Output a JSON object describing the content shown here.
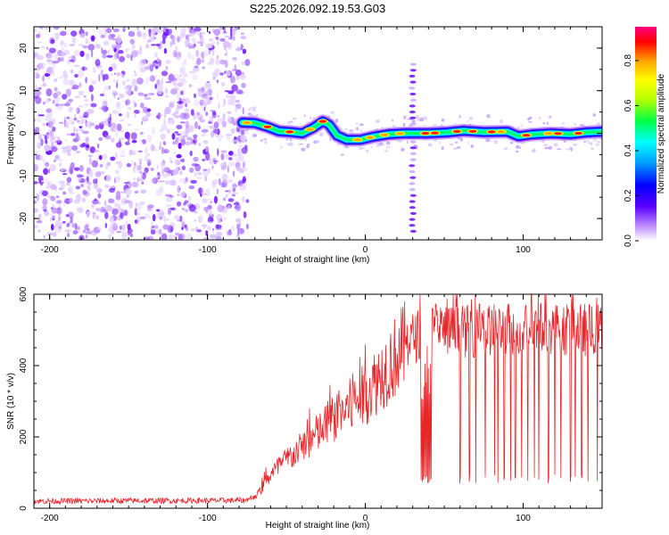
{
  "page_title": "S225.2026.092.19.53.G03",
  "colors": {
    "snr_line": "#e8262a",
    "colormap": [
      "#ffffff",
      "#b16cf5",
      "#5a00ff",
      "#0000ff",
      "#0099ff",
      "#00ffff",
      "#00ff44",
      "#b6ff00",
      "#ffff00",
      "#ffa500",
      "#ff0000",
      "#ff0080"
    ]
  },
  "chart_data": [
    {
      "type": "heatmap",
      "title": "S225.2026.092.19.53.G03",
      "xlabel": "Height of straight line (km)",
      "ylabel": "Frequency (Hz)",
      "xlim": [
        -210,
        150
      ],
      "ylim": [
        -25,
        25
      ],
      "x_ticks": [
        {
          "value": -200,
          "label": "-200"
        },
        {
          "value": -100,
          "label": "-100"
        },
        {
          "value": 0,
          "label": "0"
        },
        {
          "value": 100,
          "label": "100"
        }
      ],
      "y_ticks": [
        {
          "value": 20,
          "label": "20"
        },
        {
          "value": 10,
          "label": "10"
        },
        {
          "value": 0,
          "label": "0"
        },
        {
          "value": -10,
          "label": "-10"
        },
        {
          "value": -20,
          "label": "-20"
        }
      ],
      "noise_region_x": [
        -210,
        -78
      ],
      "signal_track": [
        {
          "x": -78,
          "y": 2.5
        },
        {
          "x": -70,
          "y": 2.4
        },
        {
          "x": -62,
          "y": 1.5
        },
        {
          "x": -55,
          "y": 0.5
        },
        {
          "x": -47,
          "y": 0.3
        },
        {
          "x": -40,
          "y": 0.0
        },
        {
          "x": -33,
          "y": 1.3
        },
        {
          "x": -27,
          "y": 2.8
        },
        {
          "x": -23,
          "y": 2.0
        },
        {
          "x": -18,
          "y": -0.5
        },
        {
          "x": -12,
          "y": -1.5
        },
        {
          "x": -3,
          "y": -1.5
        },
        {
          "x": 5,
          "y": -0.8
        },
        {
          "x": 15,
          "y": -0.2
        },
        {
          "x": 25,
          "y": 0.0
        },
        {
          "x": 40,
          "y": 0.0
        },
        {
          "x": 52,
          "y": 0.2
        },
        {
          "x": 62,
          "y": 0.6
        },
        {
          "x": 75,
          "y": 0.3
        },
        {
          "x": 90,
          "y": 0.4
        },
        {
          "x": 97,
          "y": -0.7
        },
        {
          "x": 105,
          "y": -0.3
        },
        {
          "x": 118,
          "y": 0.0
        },
        {
          "x": 130,
          "y": -0.2
        },
        {
          "x": 140,
          "y": 0.2
        },
        {
          "x": 150,
          "y": 0.4
        }
      ],
      "vertical_artifact_x": 30,
      "colorbar": {
        "label": "Normalized spectral amplitude",
        "range": [
          0.0,
          0.95
        ],
        "ticks": [
          {
            "value": 0.0,
            "label": "0.0"
          },
          {
            "value": 0.2,
            "label": "0.2"
          },
          {
            "value": 0.4,
            "label": "0.4"
          },
          {
            "value": 0.6,
            "label": "0.6"
          },
          {
            "value": 0.8,
            "label": "0.8"
          }
        ]
      }
    },
    {
      "type": "line",
      "xlabel": "Height of straight line (km)",
      "ylabel": "SNR (10 * v/v)",
      "xlim": [
        -210,
        150
      ],
      "ylim": [
        0,
        600
      ],
      "x_ticks": [
        {
          "value": -200,
          "label": "-200"
        },
        {
          "value": -100,
          "label": "-100"
        },
        {
          "value": 0,
          "label": "0"
        },
        {
          "value": 100,
          "label": "100"
        }
      ],
      "y_ticks": [
        {
          "value": 0,
          "label": "0"
        },
        {
          "value": 200,
          "label": "200"
        },
        {
          "value": 400,
          "label": "400"
        },
        {
          "value": 600,
          "label": "600"
        }
      ],
      "trend": [
        {
          "x": -210,
          "y": 20
        },
        {
          "x": -75,
          "y": 22
        },
        {
          "x": -68,
          "y": 40
        },
        {
          "x": -60,
          "y": 95
        },
        {
          "x": -50,
          "y": 135
        },
        {
          "x": -40,
          "y": 170
        },
        {
          "x": -30,
          "y": 210
        },
        {
          "x": -20,
          "y": 250
        },
        {
          "x": -10,
          "y": 285
        },
        {
          "x": 0,
          "y": 320
        },
        {
          "x": 10,
          "y": 375
        },
        {
          "x": 20,
          "y": 430
        },
        {
          "x": 28,
          "y": 470
        },
        {
          "x": 35,
          "y": 490
        },
        {
          "x": 45,
          "y": 500
        },
        {
          "x": 60,
          "y": 495
        },
        {
          "x": 100,
          "y": 505
        },
        {
          "x": 150,
          "y": 500
        }
      ],
      "dropout_block_x": [
        35,
        42
      ],
      "dropout_block_y": 70,
      "spike_dropouts_x": [
        60,
        66,
        70,
        76,
        82,
        84,
        88,
        92,
        95,
        99,
        103,
        107,
        110,
        116,
        120,
        124,
        130,
        133,
        137,
        141,
        147
      ]
    }
  ]
}
